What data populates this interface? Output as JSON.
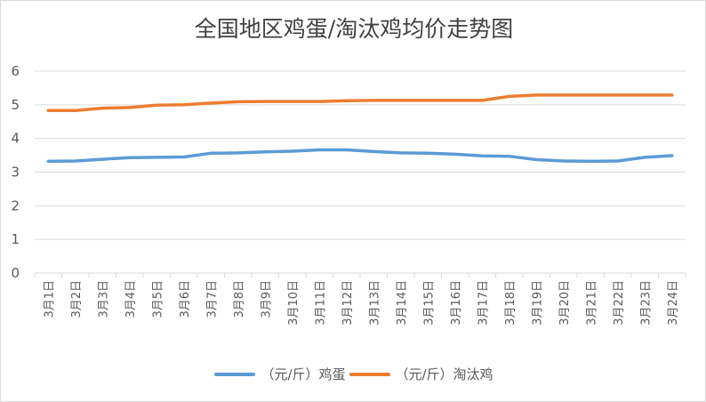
{
  "chart_data": {
    "type": "line",
    "title": "全国地区鸡蛋/淘汰鸡均价走势图",
    "xlabel": "",
    "ylabel": "",
    "ylim": [
      0,
      6
    ],
    "yticks": [
      0,
      1,
      2,
      3,
      4,
      5,
      6
    ],
    "grid": true,
    "legend_position": "bottom",
    "categories": [
      "3月1日",
      "3月2日",
      "3月3日",
      "3月4日",
      "3月5日",
      "3月6日",
      "3月7日",
      "3月8日",
      "3月9日",
      "3月10日",
      "3月11日",
      "3月12日",
      "3月13日",
      "3月14日",
      "3月15日",
      "3月16日",
      "3月17日",
      "3月18日",
      "3月19日",
      "3月20日",
      "3月21日",
      "3月22日",
      "3月23日",
      "3月24日"
    ],
    "series": [
      {
        "name": "（元/斤）鸡蛋",
        "color": "#5b9bd5",
        "values": [
          3.32,
          3.33,
          3.38,
          3.43,
          3.44,
          3.45,
          3.56,
          3.57,
          3.6,
          3.62,
          3.66,
          3.66,
          3.61,
          3.57,
          3.56,
          3.53,
          3.48,
          3.47,
          3.37,
          3.33,
          3.32,
          3.33,
          3.44,
          3.49
        ]
      },
      {
        "name": "（元/斤）淘汰鸡",
        "color": "#ed7d31",
        "values": [
          4.83,
          4.83,
          4.9,
          4.92,
          4.99,
          5.0,
          5.05,
          5.09,
          5.1,
          5.1,
          5.1,
          5.12,
          5.13,
          5.13,
          5.13,
          5.13,
          5.13,
          5.25,
          5.29,
          5.29,
          5.29,
          5.29,
          5.29,
          5.29
        ]
      }
    ]
  }
}
